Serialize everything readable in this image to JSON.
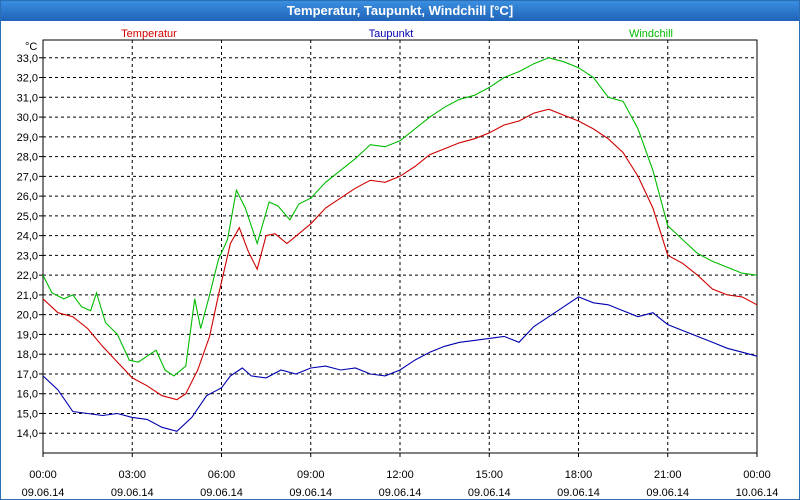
{
  "window": {
    "title": "Temperatur, Taupunkt, Windchill [°C]"
  },
  "chart_data": {
    "type": "line",
    "title": "Temperatur, Taupunkt, Windchill [°C]",
    "ylabel": "°C",
    "ylim": [
      13.0,
      33.9
    ],
    "yticks": [
      "14,0",
      "15,0",
      "16,0",
      "17,0",
      "18,0",
      "19,0",
      "20,0",
      "21,0",
      "22,0",
      "23,0",
      "24,0",
      "25,0",
      "26,0",
      "27,0",
      "28,0",
      "29,0",
      "30,0",
      "31,0",
      "32,0",
      "33,0"
    ],
    "xlim": [
      0,
      24
    ],
    "xticks": [
      {
        "x": 0,
        "time": "00:00",
        "date": "09.06.14"
      },
      {
        "x": 3,
        "time": "03:00",
        "date": "09.06.14"
      },
      {
        "x": 6,
        "time": "06:00",
        "date": "09.06.14"
      },
      {
        "x": 9,
        "time": "09:00",
        "date": "09.06.14"
      },
      {
        "x": 12,
        "time": "12:00",
        "date": "09.06.14"
      },
      {
        "x": 15,
        "time": "15:00",
        "date": "09.06.14"
      },
      {
        "x": 18,
        "time": "18:00",
        "date": "09.06.14"
      },
      {
        "x": 21,
        "time": "21:00",
        "date": "09.06.14"
      },
      {
        "x": 24,
        "time": "00:00",
        "date": "10.06.14"
      }
    ],
    "grid": true,
    "series": [
      {
        "name": "Temperatur",
        "color": "#d00000",
        "points": [
          [
            0,
            20.8
          ],
          [
            0.5,
            20.1
          ],
          [
            1,
            19.9
          ],
          [
            1.5,
            19.3
          ],
          [
            2,
            18.4
          ],
          [
            2.5,
            17.6
          ],
          [
            3,
            16.8
          ],
          [
            3.5,
            16.4
          ],
          [
            4,
            15.9
          ],
          [
            4.5,
            15.7
          ],
          [
            4.8,
            16.0
          ],
          [
            5.2,
            17.2
          ],
          [
            5.6,
            18.9
          ],
          [
            5.9,
            21.0
          ],
          [
            6.3,
            23.6
          ],
          [
            6.6,
            24.4
          ],
          [
            6.9,
            23.2
          ],
          [
            7.2,
            22.3
          ],
          [
            7.5,
            24.0
          ],
          [
            7.8,
            24.1
          ],
          [
            8.2,
            23.6
          ],
          [
            8.6,
            24.1
          ],
          [
            9,
            24.6
          ],
          [
            9.5,
            25.4
          ],
          [
            10,
            25.9
          ],
          [
            10.5,
            26.4
          ],
          [
            11,
            26.8
          ],
          [
            11.5,
            26.7
          ],
          [
            12,
            27.0
          ],
          [
            12.5,
            27.5
          ],
          [
            13,
            28.1
          ],
          [
            13.5,
            28.4
          ],
          [
            14,
            28.7
          ],
          [
            14.5,
            28.9
          ],
          [
            15,
            29.2
          ],
          [
            15.5,
            29.6
          ],
          [
            16,
            29.8
          ],
          [
            16.5,
            30.2
          ],
          [
            17,
            30.4
          ],
          [
            17.5,
            30.1
          ],
          [
            18,
            29.8
          ],
          [
            18.5,
            29.4
          ],
          [
            19,
            28.9
          ],
          [
            19.5,
            28.2
          ],
          [
            20,
            27.0
          ],
          [
            20.5,
            25.4
          ],
          [
            21,
            23.0
          ],
          [
            21.5,
            22.6
          ],
          [
            22,
            22.0
          ],
          [
            22.5,
            21.3
          ],
          [
            23,
            21.0
          ],
          [
            23.5,
            20.9
          ],
          [
            24,
            20.5
          ]
        ]
      },
      {
        "name": "Taupunkt",
        "color": "#0000b0",
        "points": [
          [
            0,
            16.9
          ],
          [
            0.5,
            16.2
          ],
          [
            1,
            15.1
          ],
          [
            1.5,
            15.0
          ],
          [
            2,
            14.9
          ],
          [
            2.5,
            15.0
          ],
          [
            3,
            14.8
          ],
          [
            3.5,
            14.7
          ],
          [
            4,
            14.3
          ],
          [
            4.5,
            14.1
          ],
          [
            5,
            14.8
          ],
          [
            5.5,
            15.9
          ],
          [
            6,
            16.3
          ],
          [
            6.3,
            16.9
          ],
          [
            6.7,
            17.3
          ],
          [
            7,
            16.9
          ],
          [
            7.5,
            16.8
          ],
          [
            8,
            17.2
          ],
          [
            8.5,
            17.0
          ],
          [
            9,
            17.3
          ],
          [
            9.5,
            17.4
          ],
          [
            10,
            17.2
          ],
          [
            10.5,
            17.3
          ],
          [
            11,
            17.0
          ],
          [
            11.5,
            16.9
          ],
          [
            12,
            17.2
          ],
          [
            12.5,
            17.7
          ],
          [
            13,
            18.1
          ],
          [
            13.5,
            18.4
          ],
          [
            14,
            18.6
          ],
          [
            14.5,
            18.7
          ],
          [
            15,
            18.8
          ],
          [
            15.5,
            18.9
          ],
          [
            16,
            18.6
          ],
          [
            16.5,
            19.4
          ],
          [
            17,
            19.9
          ],
          [
            17.5,
            20.4
          ],
          [
            18,
            20.9
          ],
          [
            18.5,
            20.6
          ],
          [
            19,
            20.5
          ],
          [
            19.5,
            20.2
          ],
          [
            20,
            19.9
          ],
          [
            20.5,
            20.1
          ],
          [
            21,
            19.5
          ],
          [
            21.5,
            19.2
          ],
          [
            22,
            18.9
          ],
          [
            22.5,
            18.6
          ],
          [
            23,
            18.3
          ],
          [
            23.5,
            18.1
          ],
          [
            24,
            17.9
          ]
        ]
      },
      {
        "name": "Windchill",
        "color": "#00bb00",
        "points": [
          [
            0,
            22.0
          ],
          [
            0.3,
            21.1
          ],
          [
            0.7,
            20.8
          ],
          [
            1,
            21.0
          ],
          [
            1.3,
            20.4
          ],
          [
            1.6,
            20.2
          ],
          [
            1.8,
            21.1
          ],
          [
            2.1,
            19.6
          ],
          [
            2.5,
            19.0
          ],
          [
            2.9,
            17.7
          ],
          [
            3.2,
            17.6
          ],
          [
            3.5,
            17.9
          ],
          [
            3.8,
            18.2
          ],
          [
            4.1,
            17.2
          ],
          [
            4.4,
            16.9
          ],
          [
            4.8,
            17.4
          ],
          [
            5.1,
            20.8
          ],
          [
            5.3,
            19.3
          ],
          [
            5.6,
            21.0
          ],
          [
            5.9,
            22.8
          ],
          [
            6.2,
            23.8
          ],
          [
            6.5,
            26.3
          ],
          [
            6.8,
            25.4
          ],
          [
            7.2,
            23.6
          ],
          [
            7.6,
            25.7
          ],
          [
            7.9,
            25.5
          ],
          [
            8.3,
            24.8
          ],
          [
            8.6,
            25.6
          ],
          [
            9,
            25.9
          ],
          [
            9.5,
            26.7
          ],
          [
            10,
            27.3
          ],
          [
            10.5,
            27.9
          ],
          [
            11,
            28.6
          ],
          [
            11.5,
            28.5
          ],
          [
            12,
            28.8
          ],
          [
            12.5,
            29.4
          ],
          [
            13,
            30.0
          ],
          [
            13.5,
            30.5
          ],
          [
            14,
            30.9
          ],
          [
            14.5,
            31.1
          ],
          [
            15,
            31.5
          ],
          [
            15.5,
            32.0
          ],
          [
            16,
            32.3
          ],
          [
            16.5,
            32.7
          ],
          [
            17,
            33.0
          ],
          [
            17.5,
            32.8
          ],
          [
            18,
            32.5
          ],
          [
            18.5,
            32.0
          ],
          [
            19,
            31.0
          ],
          [
            19.5,
            30.8
          ],
          [
            20,
            29.4
          ],
          [
            20.5,
            27.3
          ],
          [
            21,
            24.5
          ],
          [
            21.5,
            23.8
          ],
          [
            22,
            23.1
          ],
          [
            22.5,
            22.7
          ],
          [
            23,
            22.4
          ],
          [
            23.5,
            22.1
          ],
          [
            24,
            22.0
          ]
        ]
      }
    ]
  }
}
